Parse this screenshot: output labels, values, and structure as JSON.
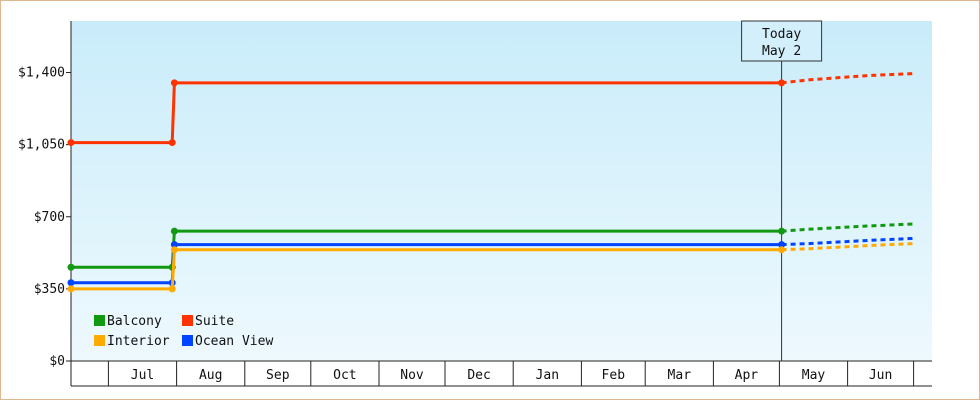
{
  "chart_data": {
    "type": "line",
    "step": true,
    "y_ticks": [
      0,
      350,
      700,
      1050,
      1400
    ],
    "y_tick_labels": [
      "$0",
      "$350",
      "$700",
      "$1,050",
      "$1,400"
    ],
    "ylim": [
      0,
      1650
    ],
    "months": [
      "Jul",
      "Aug",
      "Sep",
      "Oct",
      "Nov",
      "Dec",
      "Jan",
      "Feb",
      "Mar",
      "Apr",
      "May",
      "Jun"
    ],
    "today": {
      "line1": "Today",
      "line2": "May 2"
    },
    "grid": false,
    "legend_position": "bottom-left",
    "series": [
      {
        "name": "Suite",
        "color": "#ff3300",
        "points": [
          [
            "2023-06-14",
            1060
          ],
          [
            "2023-07-30",
            1060
          ],
          [
            "2023-07-31",
            1350
          ],
          [
            "2024-05-02",
            1350
          ]
        ],
        "forecast": [
          [
            "2024-05-02",
            1350
          ],
          [
            "2024-05-15",
            1365
          ],
          [
            "2024-06-10",
            1385
          ],
          [
            "2024-07-01",
            1395
          ]
        ]
      },
      {
        "name": "Balcony",
        "color": "#119911",
        "points": [
          [
            "2023-06-14",
            455
          ],
          [
            "2023-07-30",
            455
          ],
          [
            "2023-07-31",
            630
          ],
          [
            "2024-05-02",
            630
          ]
        ],
        "forecast": [
          [
            "2024-05-02",
            630
          ],
          [
            "2024-05-15",
            640
          ],
          [
            "2024-06-10",
            655
          ],
          [
            "2024-07-01",
            665
          ]
        ]
      },
      {
        "name": "Ocean View",
        "color": "#0044ff",
        "points": [
          [
            "2023-06-14",
            380
          ],
          [
            "2023-07-30",
            380
          ],
          [
            "2023-07-31",
            565
          ],
          [
            "2024-05-02",
            565
          ]
        ],
        "forecast": [
          [
            "2024-05-02",
            565
          ],
          [
            "2024-05-15",
            570
          ],
          [
            "2024-06-10",
            585
          ],
          [
            "2024-07-01",
            595
          ]
        ]
      },
      {
        "name": "Interior",
        "color": "#ffaa00",
        "points": [
          [
            "2023-06-14",
            350
          ],
          [
            "2023-07-30",
            350
          ],
          [
            "2023-07-31",
            540
          ],
          [
            "2024-05-02",
            540
          ]
        ],
        "forecast": [
          [
            "2024-05-02",
            540
          ],
          [
            "2024-05-15",
            545
          ],
          [
            "2024-06-10",
            560
          ],
          [
            "2024-07-01",
            570
          ]
        ]
      }
    ],
    "legend_order": [
      "Balcony",
      "Suite",
      "Interior",
      "Ocean View"
    ]
  }
}
